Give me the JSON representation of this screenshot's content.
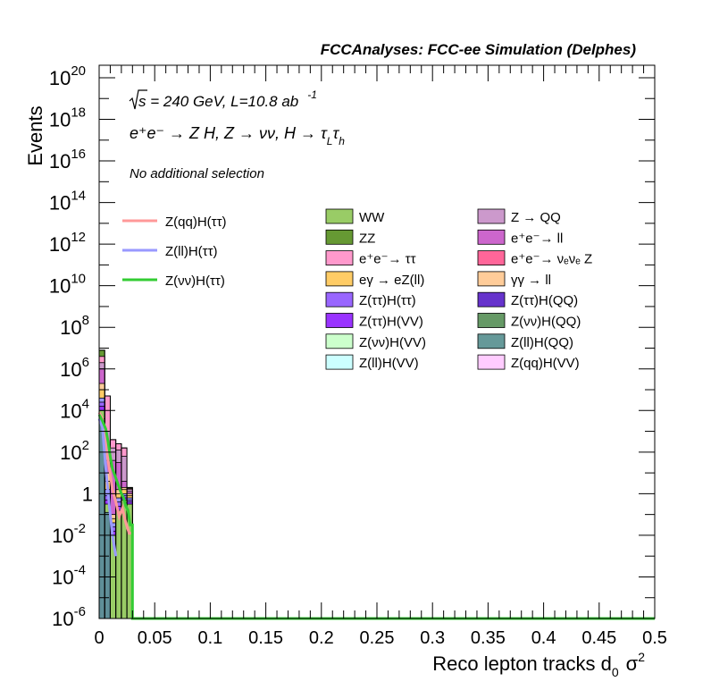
{
  "chart_data": {
    "type": "bar",
    "stacked": true,
    "log_y": true,
    "title": "FCCAnalyses: FCC-ee Simulation (Delphes)",
    "xlabel": "Reco lepton tracks d",
    "xlabel_sub": "0",
    "xlabel_tail": "σ",
    "xlabel_sup": "2",
    "ylabel": "Events",
    "xlim": [
      0,
      0.5
    ],
    "ylim_exp": [
      -6,
      20.6
    ],
    "x_ticks": [
      "0",
      "0.05",
      "0.1",
      "0.15",
      "0.2",
      "0.25",
      "0.3",
      "0.35",
      "0.4",
      "0.45",
      "0.5"
    ],
    "y_ticks": [
      {
        "base": "10",
        "exp": "-6",
        "v": -6
      },
      {
        "base": "10",
        "exp": "-4",
        "v": -4
      },
      {
        "base": "10",
        "exp": "-2",
        "v": -2
      },
      {
        "base": "1",
        "exp": "",
        "v": 0
      },
      {
        "base": "10",
        "exp": "2",
        "v": 2
      },
      {
        "base": "10",
        "exp": "4",
        "v": 4
      },
      {
        "base": "10",
        "exp": "6",
        "v": 6
      },
      {
        "base": "10",
        "exp": "8",
        "v": 8
      },
      {
        "base": "10",
        "exp": "10",
        "v": 10
      },
      {
        "base": "10",
        "exp": "12",
        "v": 12
      },
      {
        "base": "10",
        "exp": "14",
        "v": 14
      },
      {
        "base": "10",
        "exp": "16",
        "v": 16
      },
      {
        "base": "10",
        "exp": "18",
        "v": 18
      },
      {
        "base": "10",
        "exp": "20",
        "v": 20
      }
    ],
    "annotations": {
      "sqrt_s": "s = 240 GeV, L=10.8 ab",
      "lumi_exp": "-1",
      "process": "e⁺e⁻ → Z H, Z → νν, H → τ",
      "process_sub1": "L",
      "process_tau2": "τ",
      "process_sub2": "h",
      "selection": "No additional selection"
    },
    "bins": [
      {
        "x0": 0.0,
        "x1": 0.005,
        "total_exp": 6.9
      },
      {
        "x0": 0.005,
        "x1": 0.01,
        "total_exp": 4.7
      },
      {
        "x0": 0.01,
        "x1": 0.015,
        "total_exp": 2.6
      },
      {
        "x0": 0.015,
        "x1": 0.02,
        "total_exp": 2.4
      },
      {
        "x0": 0.02,
        "x1": 0.025,
        "total_exp": 2.2
      },
      {
        "x0": 0.025,
        "x1": 0.03,
        "total_exp": 0.3
      }
    ],
    "stack_layers": [
      {
        "name": "Z(ll)H(QQ)",
        "color": "#5f8f98",
        "tops": [
          3.6,
          -0.9,
          -6,
          -6,
          -6,
          -6
        ]
      },
      {
        "name": "WW",
        "color": "#99cc66",
        "tops": [
          4.0,
          -0.5,
          -2.0,
          -0.8,
          -0.3,
          -0.5
        ]
      },
      {
        "name": "Z(ττ)H(VV)",
        "color": "#9933ff",
        "tops": [
          4.2,
          -0.3,
          -1.8,
          -0.6,
          -0.2,
          -0.4
        ]
      },
      {
        "name": "Z(ττ)H(ττ)",
        "color": "#9966ff",
        "tops": [
          4.4,
          -0.1,
          -1.6,
          -0.4,
          -0.1,
          -0.3
        ]
      },
      {
        "name": "Z(ll)H(ττ) bkg",
        "color": "#9999ff",
        "tops": [
          4.6,
          0.2,
          -1.4,
          -0.2,
          0.0,
          -0.2
        ]
      },
      {
        "name": "eγ → eZ(ll)",
        "color": "#ffcc66",
        "tops": [
          5.0,
          0.6,
          -1.2,
          0.0,
          0.2,
          -0.1
        ]
      },
      {
        "name": "γγ → ll",
        "color": "#ffcc99",
        "tops": [
          5.3,
          1.0,
          -1.0,
          0.2,
          0.3,
          0.0
        ]
      },
      {
        "name": "e⁺e⁻ → ll",
        "color": "#cc66cc",
        "tops": [
          6.0,
          1.6,
          1.6,
          1.5,
          0.6,
          0.1
        ]
      },
      {
        "name": "Z → QQ",
        "color": "#cc99cc",
        "tops": [
          6.3,
          3.0,
          2.2,
          2.1,
          1.8,
          0.2
        ]
      },
      {
        "name": "e⁺e⁻ → ττ",
        "color": "#ff99cc",
        "tops": [
          6.6,
          4.7,
          2.6,
          2.4,
          2.2,
          0.25
        ]
      },
      {
        "name": "ZZ",
        "color": "#669933",
        "tops": [
          6.9,
          4.7,
          2.6,
          2.4,
          2.2,
          0.3
        ]
      }
    ],
    "lines": [
      {
        "name": "Z(qq)H(ττ)",
        "color": "#ff9999",
        "points": [
          [
            0.0,
            3.9
          ],
          [
            0.003,
            3.6
          ],
          [
            0.006,
            2.2
          ],
          [
            0.009,
            1.3
          ],
          [
            0.012,
            0.2
          ],
          [
            0.015,
            -0.4
          ],
          [
            0.018,
            -1.1
          ],
          [
            0.021,
            -0.7
          ],
          [
            0.024,
            -1.4
          ],
          [
            0.027,
            -1.9
          ],
          [
            0.03,
            -1.9
          ]
        ]
      },
      {
        "name": "Z(ll)H(ττ)",
        "color": "#9999ff",
        "points": [
          [
            0.0,
            3.6
          ],
          [
            0.003,
            3.2
          ],
          [
            0.006,
            1.2
          ],
          [
            0.009,
            -0.5
          ],
          [
            0.012,
            -2.0
          ],
          [
            0.015,
            -3.0
          ]
        ]
      },
      {
        "name": "Z(νν)H(ττ)",
        "color": "#33cc33",
        "points": [
          [
            0.0,
            3.8
          ],
          [
            0.003,
            3.5
          ],
          [
            0.006,
            3.1
          ],
          [
            0.008,
            2.5
          ],
          [
            0.01,
            1.8
          ],
          [
            0.012,
            1.2
          ],
          [
            0.014,
            0.9
          ],
          [
            0.016,
            0.6
          ],
          [
            0.018,
            0.3
          ],
          [
            0.02,
            0.0
          ],
          [
            0.022,
            -0.2
          ],
          [
            0.024,
            -0.6
          ],
          [
            0.026,
            -0.8
          ],
          [
            0.028,
            -1.5
          ],
          [
            0.03,
            -1.5
          ],
          [
            0.03,
            -6.0
          ],
          [
            0.5,
            -6.0
          ]
        ]
      }
    ],
    "legend_signal": [
      {
        "name": "Z(qq)H(ττ)",
        "color": "#ff9999"
      },
      {
        "name": "Z(ll)H(ττ)",
        "color": "#9999ff"
      },
      {
        "name": "Z(νν)H(ττ)",
        "color": "#33cc33"
      }
    ],
    "legend_bkg_col1": [
      {
        "name": "WW",
        "color": "#99cc66"
      },
      {
        "name": "ZZ",
        "color": "#669933"
      },
      {
        "name": "e⁺e⁻→ ττ",
        "color": "#ff99cc"
      },
      {
        "name": "eγ → eZ(ll)",
        "color": "#ffcc66"
      },
      {
        "name": "Z(ττ)H(ττ)",
        "color": "#9966ff"
      },
      {
        "name": "Z(ττ)H(VV)",
        "color": "#9933ff"
      },
      {
        "name": "Z(νν)H(VV)",
        "color": "#ccffcc"
      },
      {
        "name": "Z(ll)H(VV)",
        "color": "#ccffff"
      }
    ],
    "legend_bkg_col2": [
      {
        "name": "Z → QQ",
        "color": "#cc99cc"
      },
      {
        "name": "e⁺e⁻→ ll",
        "color": "#cc66cc"
      },
      {
        "name": "e⁺e⁻→ νₑνₑ Z",
        "color": "#ff6699"
      },
      {
        "name": "γγ → ll",
        "color": "#ffcc99"
      },
      {
        "name": "Z(ττ)H(QQ)",
        "color": "#6633cc"
      },
      {
        "name": "Z(νν)H(QQ)",
        "color": "#669966"
      },
      {
        "name": "Z(ll)H(QQ)",
        "color": "#669999"
      },
      {
        "name": "Z(qq)H(VV)",
        "color": "#ffccff"
      }
    ]
  }
}
